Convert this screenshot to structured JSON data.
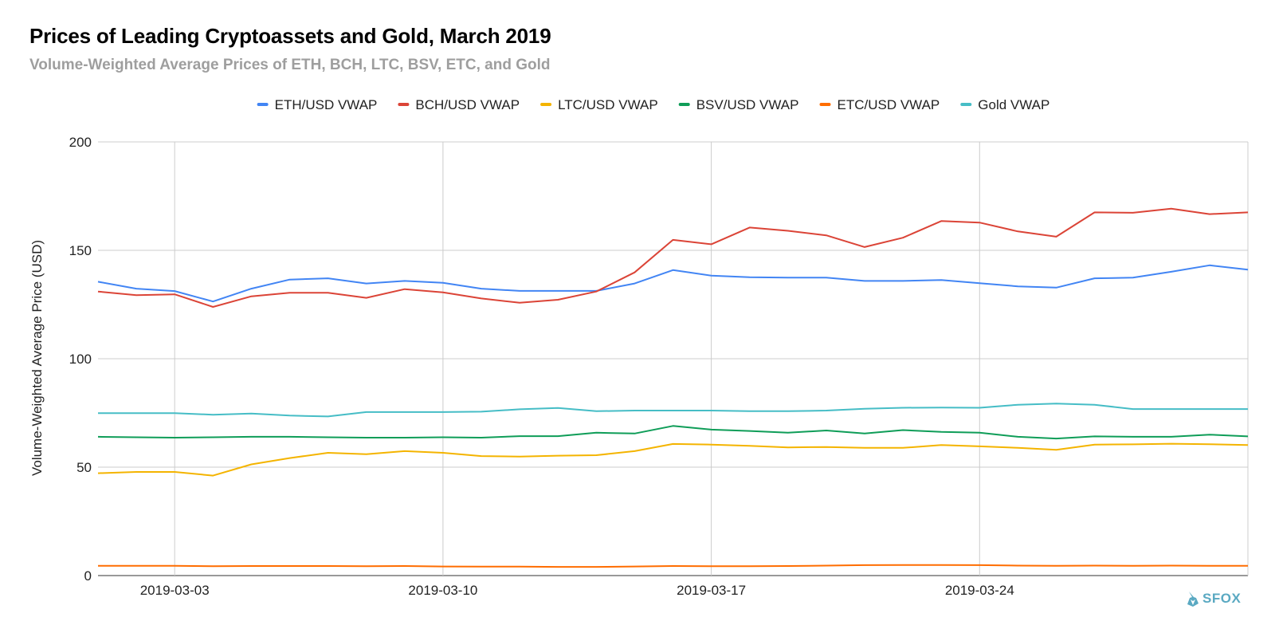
{
  "chart_data": {
    "type": "line",
    "title": "Prices of Leading Cryptoassets and Gold, March 2019",
    "subtitle": "Volume-Weighted Average Prices of ETH, BCH, LTC, BSV, ETC, and Gold",
    "xlabel": "",
    "ylabel": "Volume-Weighted Average Price (USD)",
    "ylim": [
      0,
      200
    ],
    "yticks": [
      0,
      50,
      100,
      150,
      200
    ],
    "xticks": [
      "2019-03-03",
      "2019-03-10",
      "2019-03-17",
      "2019-03-24"
    ],
    "xlim": [
      "2019-03-01",
      "2019-03-31"
    ],
    "grid": true,
    "legend_position": "top",
    "x": [
      "2019-03-01",
      "2019-03-02",
      "2019-03-03",
      "2019-03-04",
      "2019-03-05",
      "2019-03-06",
      "2019-03-07",
      "2019-03-08",
      "2019-03-09",
      "2019-03-10",
      "2019-03-11",
      "2019-03-12",
      "2019-03-13",
      "2019-03-14",
      "2019-03-15",
      "2019-03-16",
      "2019-03-17",
      "2019-03-18",
      "2019-03-19",
      "2019-03-20",
      "2019-03-21",
      "2019-03-22",
      "2019-03-23",
      "2019-03-24",
      "2019-03-25",
      "2019-03-26",
      "2019-03-27",
      "2019-03-28",
      "2019-03-29",
      "2019-03-30",
      "2019-03-31"
    ],
    "series": [
      {
        "name": "ETH/USD VWAP",
        "color": "#4285f4",
        "values": [
          135.5,
          132.3,
          131.2,
          126.4,
          132.3,
          136.5,
          137.1,
          134.7,
          135.9,
          135.0,
          132.3,
          131.3,
          131.3,
          131.3,
          134.7,
          140.9,
          138.3,
          137.6,
          137.4,
          137.4,
          135.9,
          135.9,
          136.3,
          134.8,
          133.4,
          132.8,
          137.1,
          137.4,
          140.1,
          143.1,
          141.1
        ]
      },
      {
        "name": "BCH/USD VWAP",
        "color": "#db4437",
        "values": [
          131.0,
          129.3,
          129.7,
          123.9,
          128.8,
          130.4,
          130.4,
          128.1,
          132.1,
          130.6,
          127.8,
          125.8,
          127.2,
          131.0,
          139.8,
          154.8,
          152.8,
          160.5,
          159.0,
          156.9,
          151.5,
          155.8,
          163.5,
          162.8,
          158.7,
          156.3,
          167.5,
          167.3,
          169.2,
          166.7,
          167.5
        ]
      },
      {
        "name": "LTC/USD VWAP",
        "color": "#f4b400",
        "values": [
          47.2,
          47.8,
          47.8,
          46.1,
          51.3,
          54.2,
          56.6,
          56.0,
          57.4,
          56.6,
          55.1,
          54.9,
          55.3,
          55.5,
          57.4,
          60.7,
          60.4,
          59.8,
          59.1,
          59.3,
          58.9,
          58.9,
          60.2,
          59.6,
          58.9,
          58.0,
          60.4,
          60.5,
          60.8,
          60.6,
          60.2
        ]
      },
      {
        "name": "BSV/USD VWAP",
        "color": "#0f9d58",
        "values": [
          64.0,
          63.8,
          63.6,
          63.8,
          64.0,
          64.0,
          63.8,
          63.6,
          63.6,
          63.8,
          63.6,
          64.3,
          64.3,
          65.9,
          65.5,
          69.0,
          67.3,
          66.7,
          65.9,
          66.9,
          65.5,
          67.1,
          66.3,
          65.9,
          64.0,
          63.2,
          64.2,
          64.0,
          64.0,
          65.0,
          64.2
        ]
      },
      {
        "name": "ETC/USD VWAP",
        "color": "#ff6d00",
        "values": [
          4.5,
          4.5,
          4.5,
          4.3,
          4.4,
          4.4,
          4.4,
          4.3,
          4.4,
          4.2,
          4.1,
          4.1,
          4.0,
          4.0,
          4.2,
          4.4,
          4.3,
          4.3,
          4.4,
          4.6,
          4.8,
          4.9,
          4.9,
          4.8,
          4.6,
          4.5,
          4.6,
          4.5,
          4.6,
          4.5,
          4.5
        ]
      },
      {
        "name": "Gold VWAP",
        "color": "#46bdc6",
        "values": [
          74.9,
          74.9,
          74.9,
          74.2,
          74.7,
          73.8,
          73.4,
          75.4,
          75.4,
          75.4,
          75.6,
          76.7,
          77.3,
          75.8,
          76.1,
          76.1,
          76.1,
          75.8,
          75.8,
          76.1,
          76.9,
          77.4,
          77.5,
          77.4,
          78.8,
          79.3,
          78.8,
          76.8,
          76.8,
          76.8,
          76.8
        ]
      }
    ]
  },
  "branding": {
    "logo_text": "SFOX",
    "logo_icon": "sfox-fox-icon"
  }
}
